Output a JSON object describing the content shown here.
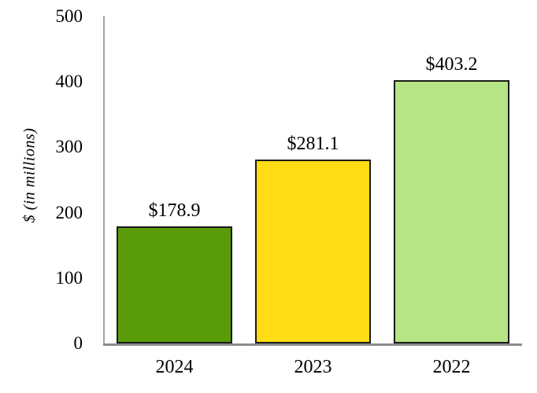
{
  "chart_data": {
    "type": "bar",
    "categories": [
      "2024",
      "2023",
      "2022"
    ],
    "values": [
      178.9,
      281.1,
      403.2
    ],
    "value_labels": [
      "$178.9",
      "$281.1",
      "$403.2"
    ],
    "series_name": "",
    "title": "",
    "xlabel": "",
    "ylabel": "$ (in millions)",
    "ylim": [
      0,
      500
    ],
    "yticks": [
      0,
      100,
      200,
      300,
      400,
      500
    ],
    "grid": false,
    "legend_position": "none",
    "bar_colors": [
      "#5a9b0a",
      "#ffdc13",
      "#b5e584"
    ],
    "bar_border_color": "#1a1a1a",
    "axis_line_color": "#a5a5a5",
    "baseline_color": "#8c8c8c",
    "text_color": "#000000",
    "background_color": "#ffffff"
  }
}
